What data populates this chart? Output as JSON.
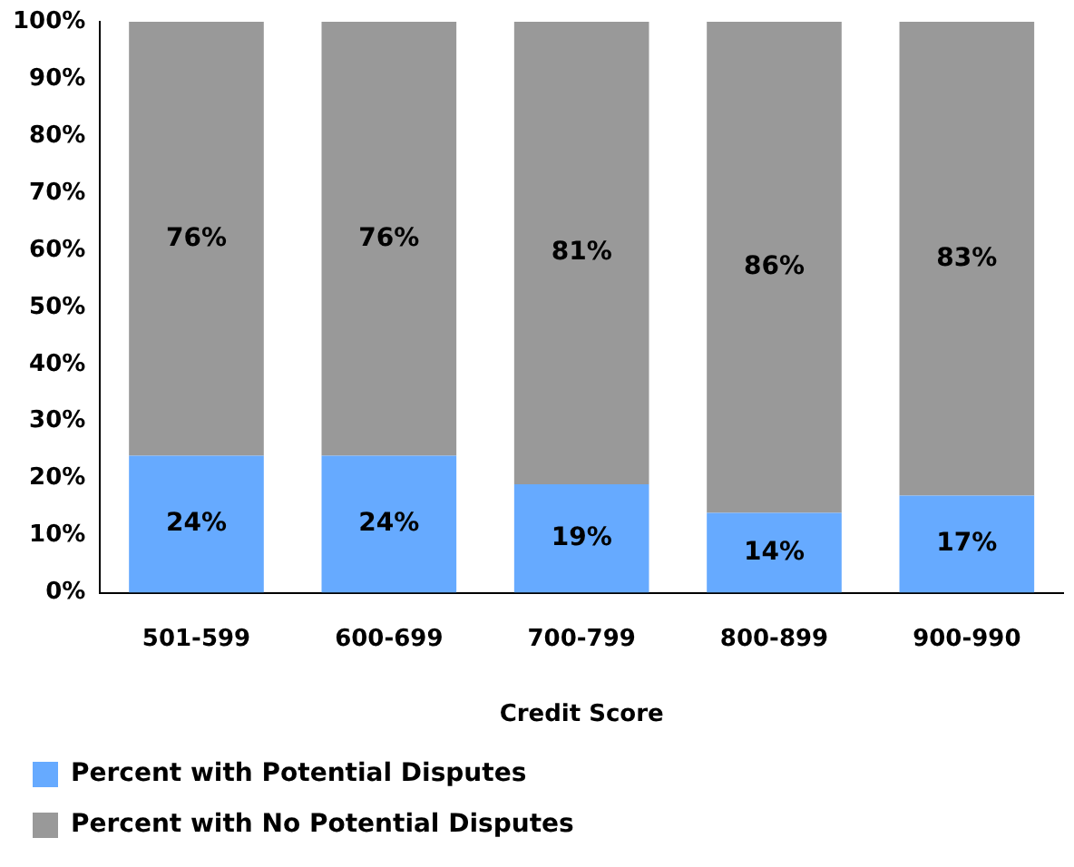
{
  "chart_data": {
    "type": "bar",
    "xlabel": "Credit Score",
    "categories": [
      "501-599",
      "600-699",
      "700-799",
      "800-899",
      "900-990"
    ],
    "stacked": true,
    "ylim": [
      0,
      100
    ],
    "yticks": [
      {
        "value": 0,
        "label": "0%"
      },
      {
        "value": 10,
        "label": "10%"
      },
      {
        "value": 20,
        "label": "20%"
      },
      {
        "value": 30,
        "label": "30%"
      },
      {
        "value": 40,
        "label": "40%"
      },
      {
        "value": 50,
        "label": "50%"
      },
      {
        "value": 60,
        "label": "60%"
      },
      {
        "value": 70,
        "label": "70%"
      },
      {
        "value": 80,
        "label": "80%"
      },
      {
        "value": 90,
        "label": "90%"
      },
      {
        "value": 100,
        "label": "100%"
      }
    ],
    "grid": false,
    "legend": "bottom",
    "series": [
      {
        "name": "Percent with Potential Disputes",
        "color": "#66aaff",
        "values": [
          24,
          24,
          19,
          14,
          17
        ],
        "value_labels": [
          "24%",
          "24%",
          "19%",
          "14%",
          "17%"
        ]
      },
      {
        "name": "Percent with No Potential Disputes",
        "color": "#999999",
        "values": [
          76,
          76,
          81,
          86,
          83
        ],
        "value_labels": [
          "76%",
          "76%",
          "81%",
          "86%",
          "83%"
        ]
      }
    ]
  }
}
